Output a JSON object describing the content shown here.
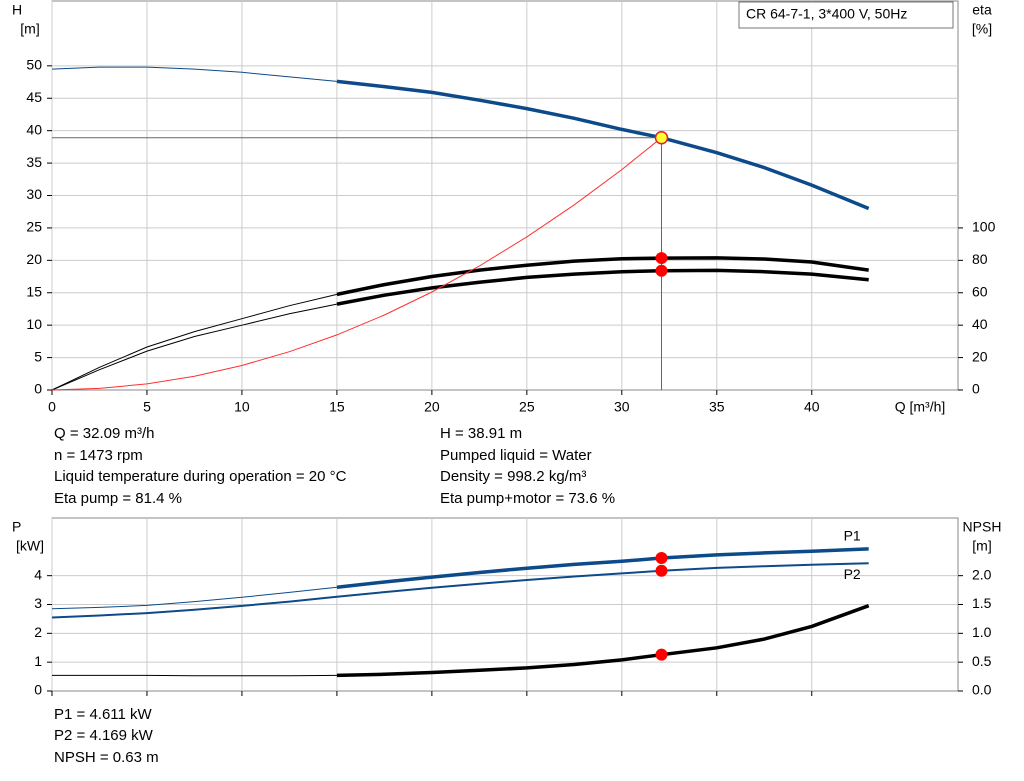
{
  "title_box": "CR 64-7-1, 3*400 V, 50Hz",
  "info_top": {
    "left": [
      "Q = 32.09 m³/h",
      "n = 1473 rpm",
      "Liquid temperature during operation = 20 °C",
      "Eta pump = 81.4 %"
    ],
    "right": [
      "H = 38.91 m",
      "Pumped liquid = Water",
      "Density = 998.2 kg/m³",
      "Eta pump+motor = 73.6 %"
    ]
  },
  "info_bottom": [
    "P1 = 4.611 kW",
    "P2 = 4.169 kW",
    "NPSH = 0.63 m"
  ],
  "chart_data": [
    {
      "type": "line",
      "ylabel": "H",
      "yunit": "[m]",
      "y2label": "eta",
      "y2unit": "[%]",
      "xlabel": "Q [m³/h]",
      "show_xtick_labels": true,
      "grid": true,
      "x": [
        0,
        2.5,
        5,
        7.5,
        10,
        12.5,
        15,
        17.5,
        20,
        22.5,
        25,
        27.5,
        30,
        32.09,
        35,
        37.5,
        40,
        43
      ],
      "xlim": [
        0,
        47.7
      ],
      "xticks": [
        0,
        5,
        10,
        15,
        20,
        25,
        30,
        35,
        40
      ],
      "ylim": [
        0,
        60
      ],
      "yticks": [
        0,
        5,
        10,
        15,
        20,
        25,
        30,
        35,
        40,
        45,
        50
      ],
      "y2lim": [
        0,
        240
      ],
      "y2ticks": [
        0,
        20,
        40,
        60,
        80,
        100
      ],
      "duty_x": 32.09,
      "series": [
        {
          "color": "#0d4a8a",
          "thick_from": 15,
          "marker_color": "#ffff33",
          "crosshair": true,
          "values": [
            49.5,
            49.8,
            49.8,
            49.5,
            49.0,
            48.3,
            47.6,
            46.8,
            45.9,
            44.7,
            43.4,
            41.9,
            40.2,
            38.91,
            36.6,
            34.3,
            31.6,
            28.0
          ]
        },
        {
          "color": "#000000",
          "axis": "y2",
          "thick_from": 15,
          "marker_color": "#ff0000",
          "values": [
            0,
            14,
            26.5,
            36,
            44,
            52,
            59,
            65,
            70,
            74,
            77,
            79.5,
            81,
            81.4,
            81.5,
            80.8,
            79,
            74
          ]
        },
        {
          "color": "#000000",
          "axis": "y2",
          "thick_from": 15,
          "marker_color": "#ff0000",
          "values": [
            0,
            12.5,
            24,
            33,
            40,
            47,
            53,
            58.5,
            63,
            66.5,
            69.5,
            71.5,
            73,
            73.6,
            73.8,
            73,
            71.5,
            68
          ]
        },
        {
          "color": "#ff3030",
          "values": [
            0,
            0.24,
            0.94,
            2.13,
            3.78,
            5.9,
            8.5,
            11.57,
            15.11,
            19.13,
            23.61,
            28.57,
            34.0,
            38.91,
            null,
            null,
            null,
            null
          ]
        }
      ]
    },
    {
      "type": "line",
      "ylabel": "P",
      "yunit": "[kW]",
      "y2label": "NPSH",
      "y2unit": "[m]",
      "show_xtick_labels": false,
      "grid": true,
      "x": [
        0,
        2.5,
        5,
        7.5,
        10,
        12.5,
        15,
        17.5,
        20,
        22.5,
        25,
        27.5,
        30,
        32.09,
        35,
        37.5,
        40,
        43
      ],
      "xlim": [
        0,
        47.7
      ],
      "xticks": [
        0,
        5,
        10,
        15,
        20,
        25,
        30,
        35,
        40
      ],
      "ylim": [
        0,
        6
      ],
      "yticks": [
        0,
        1,
        2,
        3,
        4
      ],
      "y2lim": [
        0,
        3.0
      ],
      "y2ticks": [
        {
          "value": 0,
          "label": "0.0"
        },
        {
          "value": 0.5,
          "label": "0.5"
        },
        {
          "value": 1,
          "label": "1.0"
        },
        {
          "value": 1.5,
          "label": "1.5"
        },
        {
          "value": 2,
          "label": "2.0"
        }
      ],
      "duty_x": 32.09,
      "series": [
        {
          "name": "P1",
          "color": "#0d4a8a",
          "thick_from": 15,
          "marker_color": "#ff0000",
          "values": [
            2.85,
            2.9,
            2.97,
            3.1,
            3.25,
            3.42,
            3.6,
            3.78,
            3.95,
            4.11,
            4.26,
            4.39,
            4.5,
            4.611,
            4.72,
            4.79,
            4.85,
            4.93
          ]
        },
        {
          "name": "P2",
          "color": "#0d4a8a",
          "marker_color": "#ff0000",
          "values": [
            2.55,
            2.62,
            2.7,
            2.82,
            2.95,
            3.1,
            3.27,
            3.43,
            3.58,
            3.72,
            3.85,
            3.97,
            4.08,
            4.169,
            4.27,
            4.33,
            4.38,
            4.43
          ]
        },
        {
          "color": "#000000",
          "axis": "y2",
          "thick_from": 15,
          "marker_color": "#ff0000",
          "values": [
            0.27,
            0.27,
            0.27,
            0.265,
            0.265,
            0.265,
            0.27,
            0.29,
            0.32,
            0.36,
            0.4,
            0.46,
            0.54,
            0.63,
            0.75,
            0.9,
            1.12,
            1.48
          ]
        }
      ]
    }
  ]
}
